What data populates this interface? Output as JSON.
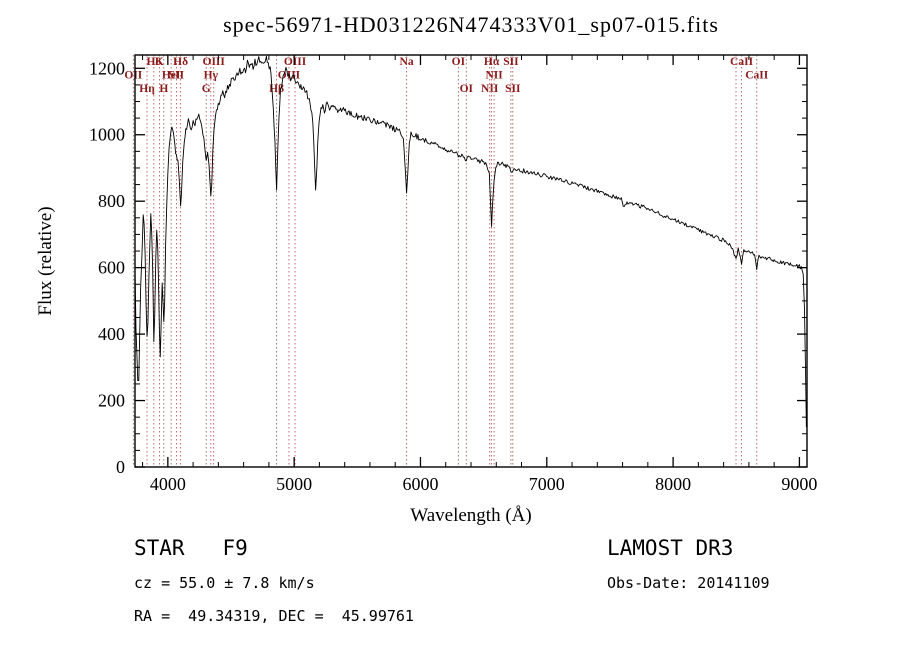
{
  "title": "spec-56971-HD031226N474333V01_sp07-015.fits",
  "annotations": {
    "class_label": "STAR   F9",
    "cz": "cz = 55.0 ± 7.8 km/s",
    "radec": "RA =  49.34319, DEC =  45.99761",
    "survey": "LAMOST DR3",
    "obs_date": "Obs-Date: 20141109"
  },
  "chart_data": {
    "type": "line",
    "title": "spec-56971-HD031226N474333V01_sp07-015.fits",
    "xlabel": "Wavelength (Å)",
    "ylabel": "Flux (relative)",
    "xlim": [
      3740,
      9060
    ],
    "ylim": [
      0,
      1240
    ],
    "xticks": [
      4000,
      5000,
      6000,
      7000,
      8000,
      9000
    ],
    "yticks": [
      0,
      200,
      400,
      600,
      800,
      1000,
      1200
    ],
    "grid": false,
    "legend": "none",
    "colors": {
      "flux_line": "#000000",
      "spectral_line": "#b05c5c",
      "label": "#8b1a1a"
    },
    "spectral_lines": [
      {
        "wavelength": 3727,
        "label": "OII",
        "row": 2
      },
      {
        "wavelength": 3835,
        "label": "Hη",
        "row": 3
      },
      {
        "wavelength": 3889,
        "label": "H8",
        "row": 1
      },
      {
        "wavelength": 3933,
        "label": "K",
        "row": 1
      },
      {
        "wavelength": 3968,
        "label": "H",
        "row": 3
      },
      {
        "wavelength": 4026,
        "label": "HeI",
        "row": 2
      },
      {
        "wavelength": 4068,
        "label": "SII",
        "row": 2
      },
      {
        "wavelength": 4101,
        "label": "Hδ",
        "row": 1
      },
      {
        "wavelength": 4304,
        "label": "G",
        "row": 3
      },
      {
        "wavelength": 4340,
        "label": "Hγ",
        "row": 2
      },
      {
        "wavelength": 4363,
        "label": "OIII",
        "row": 1
      },
      {
        "wavelength": 4861,
        "label": "Hβ",
        "row": 3
      },
      {
        "wavelength": 4959,
        "label": "OIII",
        "row": 2
      },
      {
        "wavelength": 5007,
        "label": "OIII",
        "row": 1
      },
      {
        "wavelength": 5890,
        "label": "Na",
        "row": 1
      },
      {
        "wavelength": 6300,
        "label": "OI",
        "row": 1
      },
      {
        "wavelength": 6363,
        "label": "OI",
        "row": 3
      },
      {
        "wavelength": 6548,
        "label": "NII",
        "row": 3
      },
      {
        "wavelength": 6563,
        "label": "Hα",
        "row": 1
      },
      {
        "wavelength": 6583,
        "label": "NII",
        "row": 2
      },
      {
        "wavelength": 6716,
        "label": "SII",
        "row": 1
      },
      {
        "wavelength": 6731,
        "label": "SII",
        "row": 3
      },
      {
        "wavelength": 8498,
        "label": null,
        "row": 1
      },
      {
        "wavelength": 8542,
        "label": "CaII",
        "row": 1
      },
      {
        "wavelength": 8662,
        "label": "CaII",
        "row": 2
      }
    ],
    "noise": [
      {
        "upto": 4000,
        "amp": 26
      },
      {
        "upto": 4400,
        "amp": 13
      },
      {
        "upto": 6000,
        "amp": 10
      },
      {
        "upto": 7000,
        "amp": 7
      },
      {
        "upto": 9060,
        "amp": 6
      }
    ],
    "series": [
      {
        "name": "flux",
        "points": [
          [
            3740,
            580
          ],
          [
            3748,
            430
          ],
          [
            3755,
            330
          ],
          [
            3762,
            260
          ],
          [
            3770,
            250
          ],
          [
            3778,
            390
          ],
          [
            3785,
            540
          ],
          [
            3795,
            660
          ],
          [
            3805,
            770
          ],
          [
            3812,
            730
          ],
          [
            3820,
            620
          ],
          [
            3828,
            500
          ],
          [
            3835,
            370
          ],
          [
            3842,
            420
          ],
          [
            3850,
            560
          ],
          [
            3858,
            680
          ],
          [
            3865,
            745
          ],
          [
            3872,
            700
          ],
          [
            3880,
            590
          ],
          [
            3889,
            390
          ],
          [
            3896,
            470
          ],
          [
            3905,
            620
          ],
          [
            3912,
            700
          ],
          [
            3920,
            670
          ],
          [
            3926,
            560
          ],
          [
            3933,
            400
          ],
          [
            3940,
            345
          ],
          [
            3948,
            470
          ],
          [
            3955,
            560
          ],
          [
            3961,
            520
          ],
          [
            3968,
            430
          ],
          [
            3975,
            520
          ],
          [
            3982,
            650
          ],
          [
            3990,
            780
          ],
          [
            4000,
            880
          ],
          [
            4010,
            950
          ],
          [
            4020,
            1000
          ],
          [
            4032,
            1030
          ],
          [
            4045,
            1010
          ],
          [
            4055,
            970
          ],
          [
            4068,
            930
          ],
          [
            4080,
            920
          ],
          [
            4090,
            860
          ],
          [
            4101,
            780
          ],
          [
            4108,
            830
          ],
          [
            4118,
            930
          ],
          [
            4130,
            990
          ],
          [
            4142,
            1020
          ],
          [
            4155,
            1035
          ],
          [
            4170,
            1045
          ],
          [
            4185,
            1020
          ],
          [
            4200,
            1045
          ],
          [
            4215,
            1030
          ],
          [
            4230,
            1055
          ],
          [
            4245,
            1060
          ],
          [
            4260,
            1040
          ],
          [
            4272,
            1010
          ],
          [
            4285,
            990
          ],
          [
            4295,
            950
          ],
          [
            4304,
            925
          ],
          [
            4315,
            935
          ],
          [
            4326,
            905
          ],
          [
            4340,
            820
          ],
          [
            4348,
            860
          ],
          [
            4356,
            950
          ],
          [
            4365,
            1010
          ],
          [
            4378,
            1060
          ],
          [
            4392,
            1080
          ],
          [
            4406,
            1100
          ],
          [
            4420,
            1115
          ],
          [
            4435,
            1125
          ],
          [
            4450,
            1115
          ],
          [
            4465,
            1135
          ],
          [
            4480,
            1145
          ],
          [
            4495,
            1155
          ],
          [
            4510,
            1175
          ],
          [
            4525,
            1160
          ],
          [
            4540,
            1185
          ],
          [
            4555,
            1170
          ],
          [
            4570,
            1195
          ],
          [
            4585,
            1180
          ],
          [
            4600,
            1205
          ],
          [
            4615,
            1190
          ],
          [
            4630,
            1215
          ],
          [
            4645,
            1200
          ],
          [
            4660,
            1220
          ],
          [
            4675,
            1205
          ],
          [
            4690,
            1225
          ],
          [
            4705,
            1210
          ],
          [
            4720,
            1230
          ],
          [
            4735,
            1215
          ],
          [
            4750,
            1225
          ],
          [
            4765,
            1210
          ],
          [
            4780,
            1230
          ],
          [
            4795,
            1215
          ],
          [
            4810,
            1195
          ],
          [
            4822,
            1160
          ],
          [
            4835,
            1080
          ],
          [
            4848,
            980
          ],
          [
            4861,
            830
          ],
          [
            4870,
            950
          ],
          [
            4880,
            1060
          ],
          [
            4892,
            1130
          ],
          [
            4905,
            1165
          ],
          [
            4920,
            1180
          ],
          [
            4935,
            1195
          ],
          [
            4950,
            1185
          ],
          [
            4965,
            1175
          ],
          [
            4980,
            1165
          ],
          [
            5000,
            1175
          ],
          [
            5020,
            1160
          ],
          [
            5040,
            1150
          ],
          [
            5060,
            1145
          ],
          [
            5080,
            1135
          ],
          [
            5100,
            1125
          ],
          [
            5120,
            1105
          ],
          [
            5140,
            1070
          ],
          [
            5155,
            990
          ],
          [
            5170,
            830
          ],
          [
            5180,
            910
          ],
          [
            5192,
            1020
          ],
          [
            5205,
            1070
          ],
          [
            5220,
            1085
          ],
          [
            5240,
            1075
          ],
          [
            5260,
            1090
          ],
          [
            5280,
            1080
          ],
          [
            5300,
            1085
          ],
          [
            5330,
            1075
          ],
          [
            5360,
            1070
          ],
          [
            5390,
            1075
          ],
          [
            5420,
            1065
          ],
          [
            5450,
            1062
          ],
          [
            5480,
            1058
          ],
          [
            5510,
            1055
          ],
          [
            5540,
            1052
          ],
          [
            5570,
            1048
          ],
          [
            5600,
            1045
          ],
          [
            5630,
            1040
          ],
          [
            5660,
            1038
          ],
          [
            5690,
            1035
          ],
          [
            5720,
            1030
          ],
          [
            5750,
            1028
          ],
          [
            5780,
            1022
          ],
          [
            5810,
            1015
          ],
          [
            5840,
            1005
          ],
          [
            5865,
            980
          ],
          [
            5890,
            830
          ],
          [
            5900,
            890
          ],
          [
            5912,
            970
          ],
          [
            5925,
            1000
          ],
          [
            5950,
            998
          ],
          [
            5980,
            992
          ],
          [
            6010,
            988
          ],
          [
            6040,
            982
          ],
          [
            6070,
            978
          ],
          [
            6100,
            972
          ],
          [
            6130,
            968
          ],
          [
            6160,
            962
          ],
          [
            6190,
            958
          ],
          [
            6220,
            952
          ],
          [
            6250,
            948
          ],
          [
            6280,
            945
          ],
          [
            6300,
            938
          ],
          [
            6320,
            940
          ],
          [
            6340,
            936
          ],
          [
            6363,
            925
          ],
          [
            6385,
            932
          ],
          [
            6410,
            928
          ],
          [
            6440,
            925
          ],
          [
            6470,
            920
          ],
          [
            6500,
            918
          ],
          [
            6525,
            912
          ],
          [
            6545,
            880
          ],
          [
            6563,
            730
          ],
          [
            6575,
            820
          ],
          [
            6590,
            890
          ],
          [
            6610,
            915
          ],
          [
            6640,
            912
          ],
          [
            6670,
            908
          ],
          [
            6700,
            905
          ],
          [
            6716,
            890
          ],
          [
            6731,
            885
          ],
          [
            6750,
            898
          ],
          [
            6780,
            895
          ],
          [
            6810,
            892
          ],
          [
            6840,
            890
          ],
          [
            6870,
            888
          ],
          [
            6900,
            885
          ],
          [
            6930,
            882
          ],
          [
            6960,
            878
          ],
          [
            7000,
            875
          ],
          [
            7040,
            870
          ],
          [
            7080,
            866
          ],
          [
            7120,
            862
          ],
          [
            7160,
            858
          ],
          [
            7200,
            853
          ],
          [
            7250,
            848
          ],
          [
            7300,
            842
          ],
          [
            7350,
            836
          ],
          [
            7400,
            830
          ],
          [
            7450,
            824
          ],
          [
            7500,
            818
          ],
          [
            7550,
            810
          ],
          [
            7590,
            805
          ],
          [
            7605,
            780
          ],
          [
            7620,
            795
          ],
          [
            7650,
            795
          ],
          [
            7700,
            790
          ],
          [
            7750,
            784
          ],
          [
            7800,
            778
          ],
          [
            7850,
            770
          ],
          [
            7900,
            762
          ],
          [
            7950,
            752
          ],
          [
            8000,
            745
          ],
          [
            8050,
            738
          ],
          [
            8100,
            730
          ],
          [
            8150,
            722
          ],
          [
            8200,
            714
          ],
          [
            8250,
            706
          ],
          [
            8300,
            698
          ],
          [
            8350,
            690
          ],
          [
            8400,
            682
          ],
          [
            8440,
            672
          ],
          [
            8470,
            660
          ],
          [
            8498,
            625
          ],
          [
            8515,
            655
          ],
          [
            8542,
            615
          ],
          [
            8560,
            650
          ],
          [
            8590,
            648
          ],
          [
            8620,
            645
          ],
          [
            8645,
            635
          ],
          [
            8662,
            600
          ],
          [
            8680,
            635
          ],
          [
            8710,
            632
          ],
          [
            8740,
            628
          ],
          [
            8770,
            625
          ],
          [
            8800,
            622
          ],
          [
            8830,
            618
          ],
          [
            8860,
            615
          ],
          [
            8890,
            612
          ],
          [
            8920,
            610
          ],
          [
            8950,
            608
          ],
          [
            8980,
            606
          ],
          [
            9000,
            604
          ],
          [
            9015,
            598
          ],
          [
            9030,
            580
          ],
          [
            9040,
            480
          ],
          [
            9048,
            300
          ],
          [
            9055,
            120
          ]
        ]
      }
    ]
  }
}
